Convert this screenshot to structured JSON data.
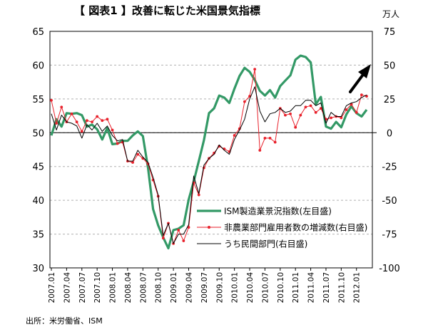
{
  "title": "【 図表1 】改善に転じた米国景気指標",
  "source": "出所：米労働省、ISM",
  "chart_data": {
    "type": "line",
    "right_axis_unit": "万人",
    "left_axis": {
      "ylim": [
        30,
        65
      ],
      "ticks": [
        30,
        35,
        40,
        45,
        50,
        55,
        60,
        65
      ]
    },
    "right_axis": {
      "ylim": [
        -100,
        75
      ],
      "ticks": [
        -100,
        -75,
        -50,
        -25,
        0,
        25,
        50,
        75
      ]
    },
    "x_tick_labels": [
      "2007.01",
      "2007.04",
      "2007.07",
      "2007.10",
      "2008.01",
      "2008.04",
      "2008.07",
      "2008.10",
      "2009.01",
      "2009.04",
      "2009.07",
      "2009.10",
      "2010.01",
      "2010.04",
      "2010.07",
      "2010.10",
      "2011.01",
      "2011.04",
      "2011.07",
      "2011.10",
      "2012.01"
    ],
    "reference_line_left": 50,
    "grid": "horizontal dashed",
    "legend_placement": "bottom-right inside plot",
    "annotation": "up arrow (upper right)",
    "series": [
      {
        "name": "ISM製造業景況指数(左目盛)",
        "axis": "left",
        "color": "#339966",
        "values": [
          49.6,
          52.0,
          50.9,
          52.9,
          52.8,
          52.9,
          52.6,
          50.9,
          51.2,
          50.5,
          49.0,
          50.7,
          48.3,
          48.4,
          48.8,
          48.8,
          49.6,
          50.2,
          49.5,
          44.8,
          38.7,
          36.3,
          34.5,
          32.9,
          35.6,
          35.8,
          36.3,
          40.1,
          42.8,
          45.8,
          48.9,
          52.9,
          53.6,
          55.5,
          55.2,
          54.4,
          56.5,
          58.4,
          59.6,
          59.0,
          57.8,
          56.2,
          55.5,
          56.3,
          55.2,
          56.9,
          57.7,
          58.5,
          60.8,
          61.4,
          61.2,
          60.4,
          54.2,
          55.3,
          50.9,
          50.6,
          51.6,
          50.8,
          52.7,
          53.9,
          52.9,
          52.4,
          53.4
        ]
      },
      {
        "name": "非農業部門雇用者数の増減数(右目盛)",
        "axis": "right",
        "color": "#e8212b",
        "values": [
          24,
          7,
          19,
          8,
          14,
          8,
          1,
          9,
          8,
          12,
          9,
          10,
          2,
          -8,
          -7,
          -21,
          -22,
          -16,
          -19,
          -23,
          -35,
          -47,
          -78,
          -67,
          -82,
          -72,
          -80,
          -70,
          -37,
          -46,
          -26,
          -19,
          -15,
          -10,
          -12,
          -14,
          -2,
          3,
          23,
          27,
          47,
          -13,
          -4,
          -4,
          -7,
          18,
          13,
          14,
          4,
          13,
          19,
          20,
          15,
          18,
          10,
          11,
          12,
          11,
          17,
          21,
          15,
          28,
          27
        ]
      },
      {
        "name": "うち民間部門(右目盛)",
        "axis": "right",
        "color": "#000000",
        "values": [
          14,
          2,
          13,
          8,
          7,
          5,
          -4,
          6,
          2,
          7,
          1,
          5,
          -2,
          -6,
          -5,
          -21,
          -21,
          -13,
          -18,
          -22,
          -33,
          -46,
          -76,
          -67,
          -82,
          -75,
          -75,
          -68,
          -32,
          -45,
          -24,
          -19,
          -16,
          -9,
          -13,
          -16,
          -5,
          2,
          10,
          25,
          34,
          16,
          8,
          14,
          15,
          18,
          15,
          16,
          20,
          20,
          24,
          24,
          20,
          22,
          7,
          15,
          12,
          12,
          20,
          22,
          23,
          26,
          28
        ]
      }
    ]
  }
}
